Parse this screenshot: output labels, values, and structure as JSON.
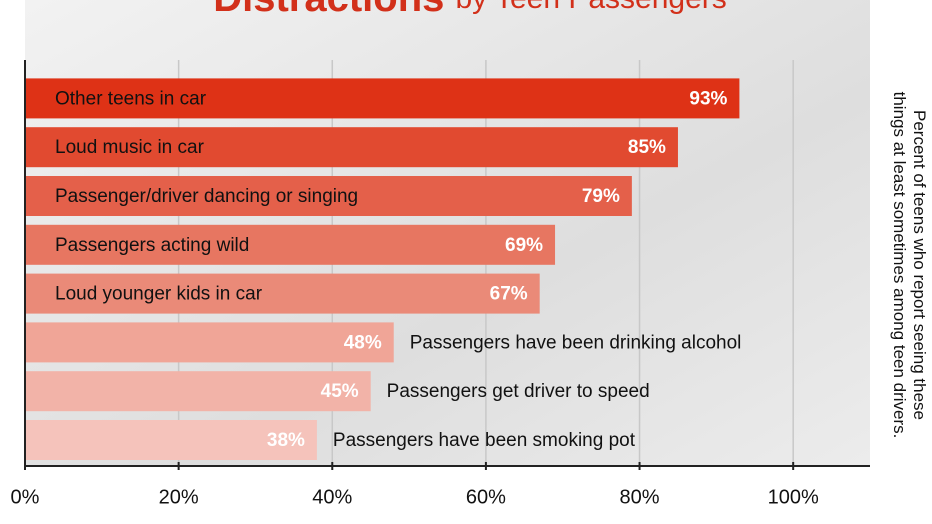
{
  "chart_data": {
    "type": "hbar",
    "title": "Distractions",
    "subtitle": "by Teen Passengers",
    "note": [
      "Percent of teens who report seeing these",
      "things at least sometimes among teen drivers."
    ],
    "categories": [
      "Other teens in car",
      "Loud music in car",
      "Passenger/driver dancing or singing",
      "Passengers acting wild",
      "Loud younger kids in car",
      "Passengers have been drinking alcohol",
      "Passengers get driver to speed",
      "Passengers have been smoking pot"
    ],
    "values": [
      93,
      85,
      79,
      69,
      67,
      48,
      45,
      38
    ],
    "value_labels": [
      "93%",
      "85%",
      "79%",
      "69%",
      "67%",
      "48%",
      "45%",
      "38%"
    ],
    "colors": [
      "#de3216",
      "#e14a30",
      "#e4604a",
      "#e77661",
      "#ea8a78",
      "#f0a597",
      "#f2b3a8",
      "#f5c3bb"
    ],
    "xlim": [
      0,
      110
    ],
    "xticks": [
      {
        "value": 0,
        "label": "0%"
      },
      {
        "value": 20,
        "label": "20%"
      },
      {
        "value": 40,
        "label": "40%"
      },
      {
        "value": 60,
        "label": "60%"
      },
      {
        "value": 80,
        "label": "80%"
      },
      {
        "value": 100,
        "label": "100%"
      }
    ],
    "grid": true
  }
}
